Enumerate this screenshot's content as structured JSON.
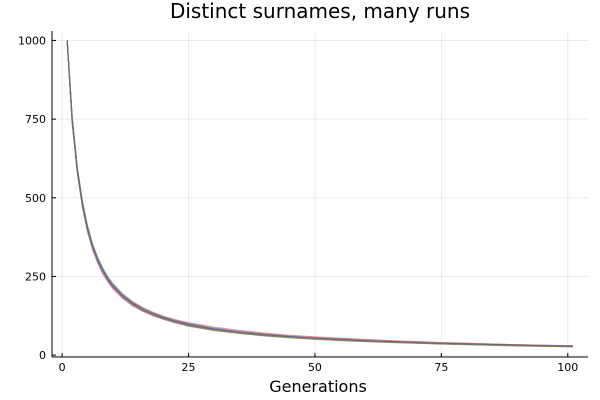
{
  "chart_data": {
    "type": "line",
    "title": "Distinct surnames, many runs",
    "xlabel": "Generations",
    "ylabel": "",
    "xlim": [
      -2,
      104
    ],
    "ylim": [
      -6,
      1030
    ],
    "xticks": [
      0,
      25,
      50,
      75,
      100
    ],
    "yticks": [
      0,
      250,
      500,
      750,
      1000
    ],
    "grid": true,
    "legend": "none",
    "palette": [
      "#009AFA",
      "#E36F47",
      "#3EA44E",
      "#C371D2",
      "#AC8E18",
      "#00AAAE",
      "#ED5E93",
      "#C68225",
      "#00A98D",
      "#8E971E",
      "#00A9CD",
      "#9B7FE9",
      "#618DF6",
      "#F16C6F",
      "#DC63BB",
      "#6D9E33",
      "#5F5F5F"
    ],
    "x": [
      1,
      2,
      3,
      4,
      5,
      6,
      7,
      8,
      9,
      10,
      12,
      14,
      16,
      18,
      20,
      22,
      25,
      30,
      35,
      40,
      45,
      50,
      55,
      60,
      65,
      70,
      75,
      80,
      85,
      90,
      95,
      101
    ],
    "series": [
      {
        "values": [
          1000,
          745,
          588,
          480,
          402,
          344,
          302,
          268,
          241,
          219,
          186,
          162,
          144,
          130,
          118,
          108,
          96,
          82,
          72,
          64,
          58,
          53,
          49,
          46,
          43,
          40,
          37,
          35,
          33,
          31,
          30,
          28
        ]
      },
      {
        "values": [
          1000,
          752,
          594,
          487,
          409,
          351,
          308,
          274,
          246,
          224,
          190,
          166,
          147,
          132,
          121,
          111,
          99,
          84,
          74,
          66,
          59,
          55,
          51,
          47,
          44,
          41,
          38,
          36,
          34,
          32,
          30,
          29
        ]
      },
      {
        "values": [
          1000,
          738,
          582,
          474,
          396,
          339,
          297,
          263,
          236,
          215,
          182,
          158,
          140,
          126,
          115,
          105,
          93,
          79,
          70,
          62,
          56,
          51,
          47,
          44,
          41,
          39,
          36,
          34,
          32,
          30,
          29,
          27
        ]
      },
      {
        "values": [
          1000,
          748,
          590,
          483,
          405,
          347,
          305,
          271,
          243,
          222,
          188,
          164,
          146,
          131,
          120,
          110,
          98,
          83,
          73,
          65,
          58,
          54,
          50,
          46,
          43,
          40,
          38,
          36,
          34,
          32,
          30,
          28
        ]
      },
      {
        "values": [
          1000,
          742,
          586,
          478,
          400,
          342,
          300,
          266,
          239,
          218,
          185,
          161,
          143,
          129,
          117,
          107,
          95,
          81,
          71,
          63,
          57,
          52,
          48,
          45,
          42,
          40,
          37,
          35,
          33,
          31,
          29,
          28
        ]
      },
      {
        "values": [
          1000,
          756,
          598,
          491,
          413,
          355,
          312,
          278,
          250,
          228,
          194,
          169,
          150,
          135,
          123,
          113,
          101,
          86,
          75,
          67,
          61,
          56,
          52,
          48,
          45,
          42,
          39,
          37,
          35,
          33,
          31,
          30
        ]
      },
      {
        "values": [
          1000,
          735,
          578,
          470,
          393,
          336,
          294,
          260,
          234,
          212,
          180,
          156,
          139,
          125,
          114,
          104,
          92,
          78,
          69,
          61,
          55,
          50,
          46,
          43,
          40,
          38,
          35,
          33,
          31,
          29,
          28,
          26
        ]
      },
      {
        "values": [
          1000,
          750,
          592,
          485,
          407,
          349,
          306,
          272,
          245,
          223,
          189,
          165,
          146,
          132,
          120,
          110,
          98,
          84,
          74,
          66,
          60,
          55,
          51,
          47,
          44,
          41,
          39,
          36,
          34,
          32,
          31,
          29
        ]
      },
      {
        "values": [
          1000,
          744,
          587,
          479,
          401,
          343,
          301,
          267,
          240,
          219,
          186,
          162,
          144,
          130,
          118,
          108,
          96,
          82,
          72,
          64,
          58,
          53,
          49,
          45,
          42,
          40,
          37,
          35,
          33,
          31,
          29,
          28
        ]
      },
      {
        "values": [
          1000,
          746,
          589,
          481,
          403,
          345,
          303,
          269,
          242,
          221,
          187,
          163,
          145,
          130,
          119,
          109,
          97,
          83,
          73,
          65,
          59,
          54,
          50,
          46,
          43,
          41,
          38,
          36,
          34,
          32,
          30,
          29
        ]
      },
      {
        "values": [
          1000,
          740,
          584,
          476,
          398,
          340,
          298,
          264,
          238,
          216,
          183,
          159,
          141,
          127,
          116,
          106,
          94,
          80,
          70,
          62,
          56,
          52,
          48,
          44,
          41,
          39,
          36,
          34,
          32,
          30,
          29,
          27
        ]
      },
      {
        "values": [
          1000,
          753,
          595,
          488,
          410,
          352,
          309,
          275,
          247,
          225,
          191,
          167,
          148,
          133,
          121,
          111,
          99,
          85,
          75,
          67,
          60,
          56,
          52,
          48,
          45,
          42,
          39,
          37,
          35,
          33,
          31,
          30
        ]
      },
      {
        "values": [
          1000,
          747,
          591,
          484,
          406,
          348,
          304,
          270,
          244,
          222,
          188,
          164,
          145,
          131,
          119,
          109,
          98,
          83,
          73,
          65,
          59,
          54,
          50,
          46,
          43,
          40,
          38,
          36,
          34,
          32,
          30,
          28
        ]
      },
      {
        "values": [
          1000,
          749,
          593,
          486,
          408,
          350,
          307,
          273,
          246,
          224,
          191,
          168,
          150,
          136,
          124,
          114,
          103,
          89,
          79,
          70,
          63,
          58,
          54,
          50,
          46,
          43,
          40,
          38,
          35,
          33,
          31,
          29
        ]
      },
      {
        "values": [
          1000,
          743,
          585,
          477,
          399,
          341,
          299,
          265,
          237,
          216,
          182,
          158,
          140,
          126,
          115,
          106,
          95,
          81,
          71,
          63,
          57,
          52,
          48,
          45,
          42,
          39,
          37,
          35,
          33,
          31,
          29,
          28
        ]
      },
      {
        "values": [
          1000,
          751,
          594,
          486,
          408,
          350,
          307,
          272,
          244,
          222,
          187,
          162,
          143,
          128,
          116,
          106,
          94,
          80,
          70,
          62,
          56,
          51,
          47,
          44,
          41,
          38,
          36,
          34,
          32,
          30,
          28,
          27
        ]
      },
      {
        "values": [
          1000,
          745,
          589,
          482,
          404,
          346,
          304,
          270,
          243,
          221,
          188,
          164,
          145,
          131,
          119,
          109,
          97,
          83,
          73,
          65,
          59,
          54,
          50,
          46,
          43,
          40,
          38,
          36,
          34,
          32,
          30,
          28
        ]
      }
    ]
  }
}
